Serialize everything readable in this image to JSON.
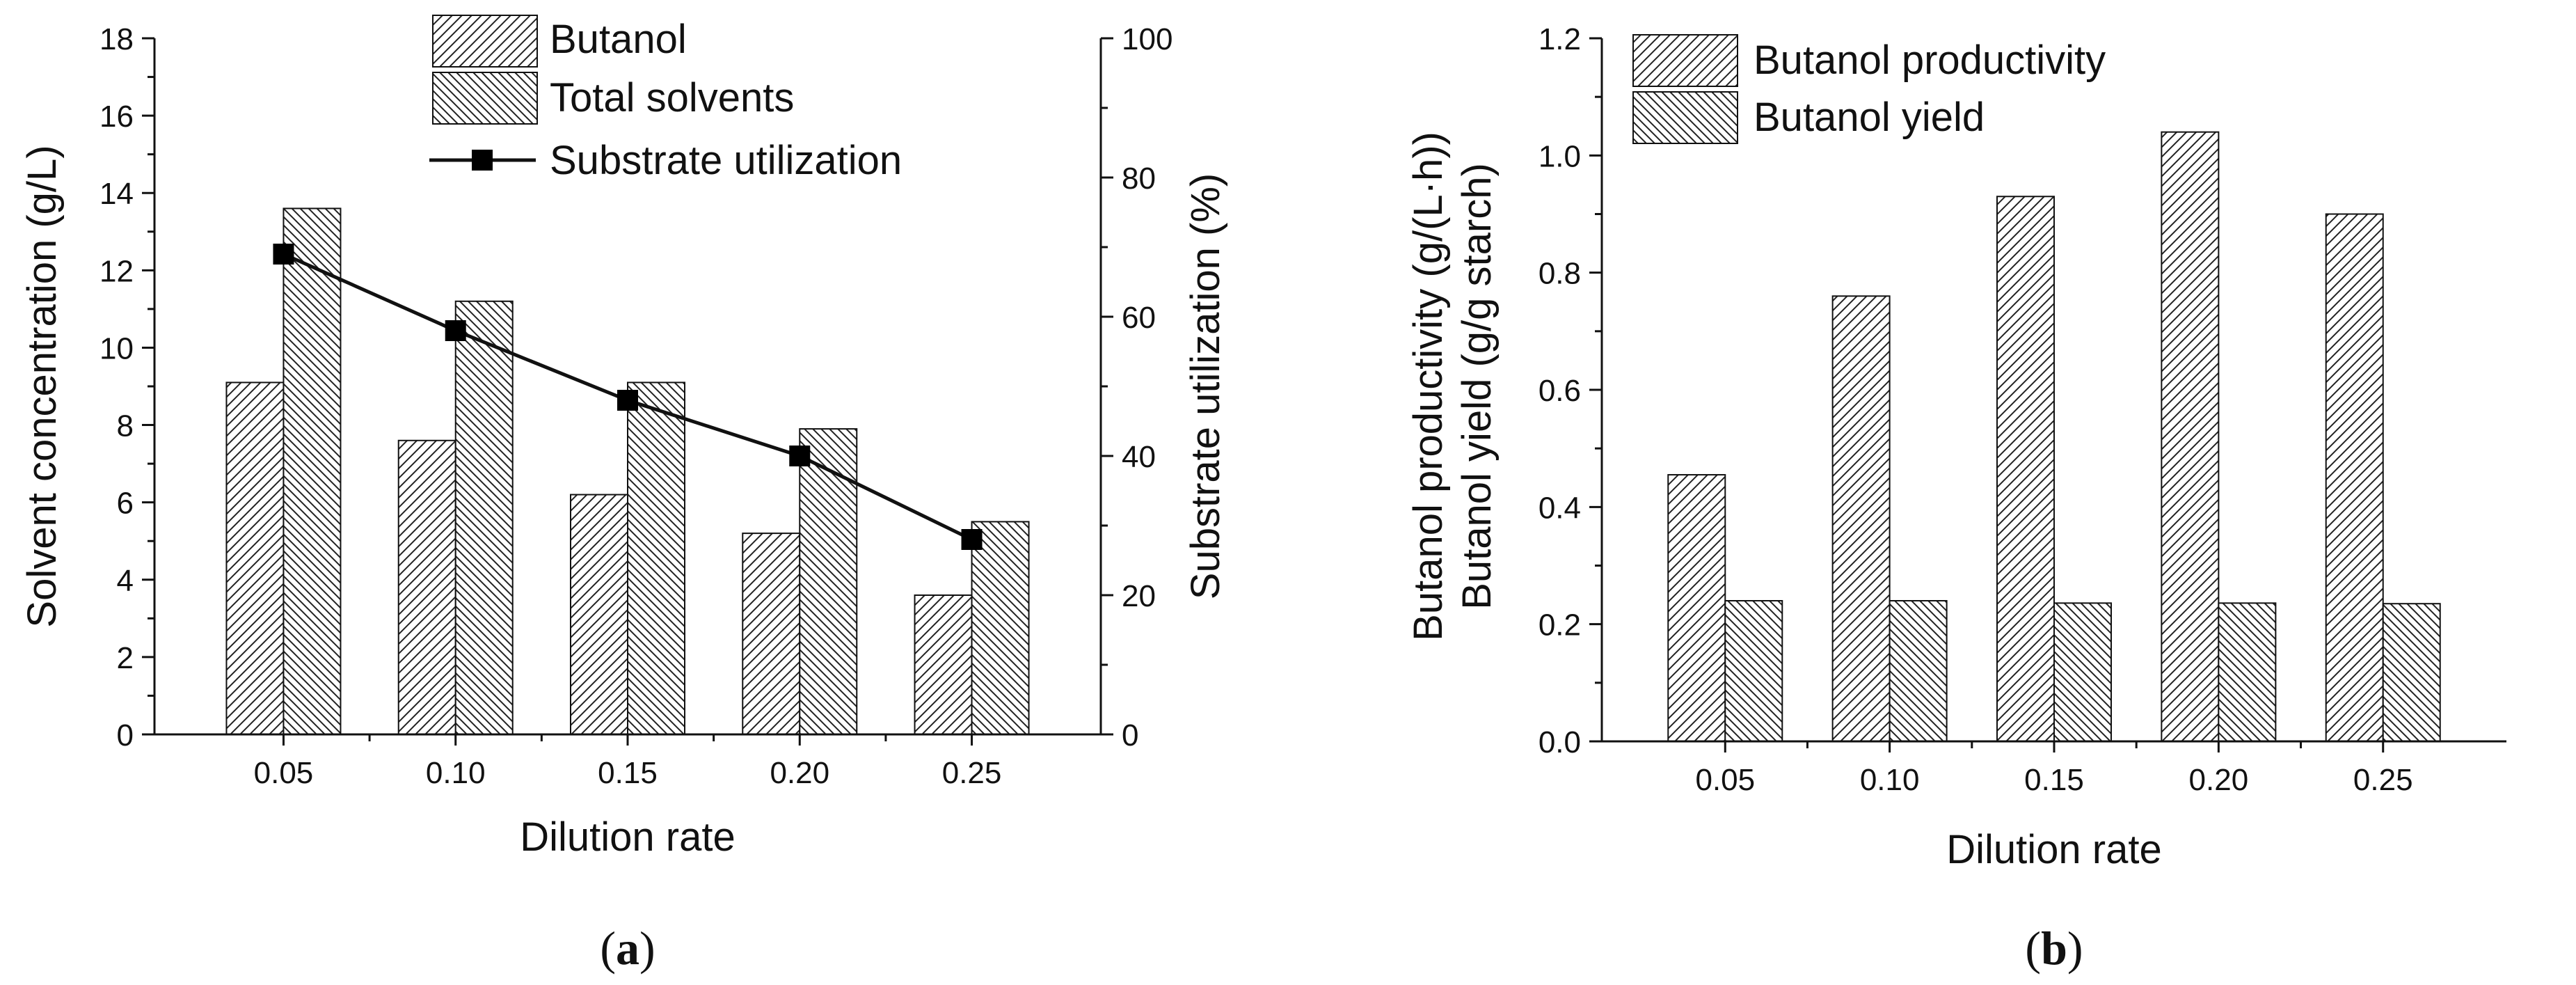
{
  "chart_data": [
    {
      "panel": "a",
      "type": "bar",
      "categories": [
        "0.05",
        "0.10",
        "0.15",
        "0.20",
        "0.25"
      ],
      "series": [
        {
          "name": "Butanol",
          "axis": "left",
          "kind": "bar",
          "pattern": "hatch-forward",
          "values": [
            9.1,
            7.6,
            6.2,
            5.2,
            3.6
          ]
        },
        {
          "name": "Total solvents",
          "axis": "left",
          "kind": "bar",
          "pattern": "hatch-back",
          "values": [
            13.6,
            11.2,
            9.1,
            7.9,
            5.5
          ]
        },
        {
          "name": "Substrate utilization",
          "axis": "right",
          "kind": "line-square",
          "values": [
            69,
            58,
            48,
            40,
            28
          ]
        }
      ],
      "xlabel": "Dilution rate",
      "ylabel": "Solvent concentration (g/L)",
      "y2label": "Substrate utilization (%)",
      "ylim": [
        0,
        18
      ],
      "yticks": [
        "0",
        "2",
        "4",
        "6",
        "8",
        "10",
        "12",
        "14",
        "16",
        "18"
      ],
      "y2lim": [
        0,
        100
      ],
      "y2ticks": [
        "0",
        "20",
        "40",
        "60",
        "80",
        "100"
      ],
      "legend_position": "top-center",
      "grid": false,
      "panel_label": {
        "open": "(",
        "letter": "a",
        "close": ")"
      }
    },
    {
      "panel": "b",
      "type": "bar",
      "categories": [
        "0.05",
        "0.10",
        "0.15",
        "0.20",
        "0.25"
      ],
      "series": [
        {
          "name": "Butanol productivity",
          "kind": "bar",
          "pattern": "hatch-forward",
          "values": [
            0.455,
            0.76,
            0.93,
            1.04,
            0.9
          ]
        },
        {
          "name": "Butanol yield",
          "kind": "bar",
          "pattern": "hatch-back",
          "values": [
            0.24,
            0.24,
            0.236,
            0.236,
            0.235
          ]
        }
      ],
      "xlabel": "Dilution rate",
      "ylabel_lines": [
        "Butanol productivity (g/(L·h))",
        "Butanol yield (g/g starch)"
      ],
      "ylim": [
        0,
        1.2
      ],
      "yticks": [
        "0.0",
        "0.2",
        "0.4",
        "0.6",
        "0.8",
        "1.0",
        "1.2"
      ],
      "legend_position": "top-left",
      "grid": false,
      "panel_label": {
        "open": "(",
        "letter": "b",
        "close": ")"
      }
    }
  ],
  "colors": {
    "ink": "#111111",
    "bar_fill": "#ffffff",
    "marker": "#000000"
  }
}
